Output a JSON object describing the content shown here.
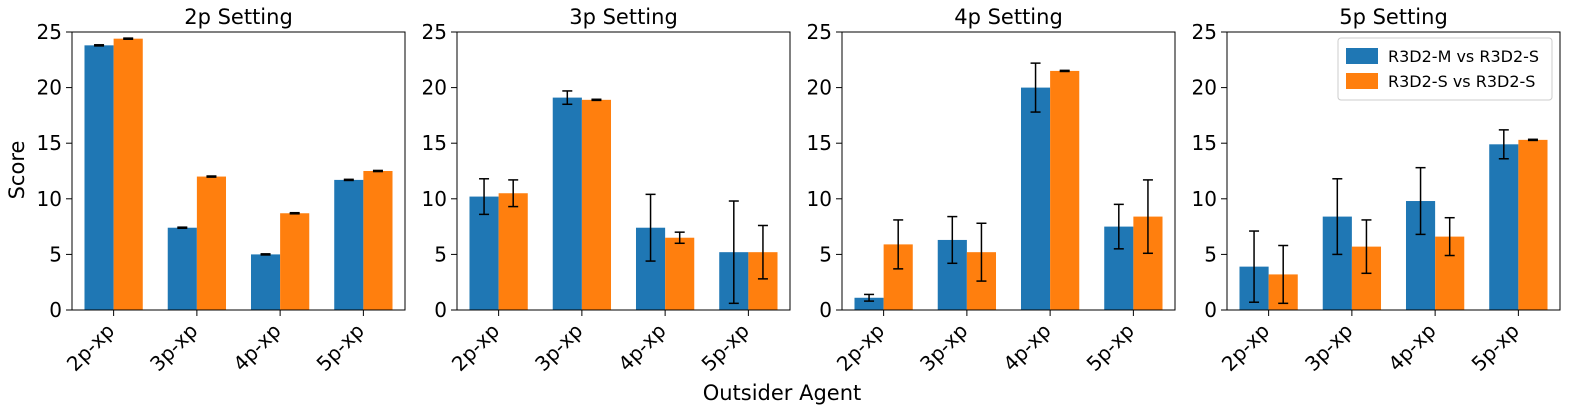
{
  "chart_data": {
    "type": "bar",
    "xlabel": "Outsider Agent",
    "ylabel": "Score",
    "ylim": [
      0,
      25
    ],
    "yticks": [
      0,
      5,
      10,
      15,
      20,
      25
    ],
    "categories": [
      "2p-xp",
      "3p-xp",
      "4p-xp",
      "5p-xp"
    ],
    "legend": {
      "location": "top-right",
      "entries": [
        "R3D2-M vs R3D2-S",
        "R3D2-S vs R3D2-S"
      ]
    },
    "colors": [
      "#1f77b4",
      "#ff7f0e"
    ],
    "panels": [
      {
        "title": "2p Setting",
        "series": [
          {
            "name": "R3D2-M vs R3D2-S",
            "values": [
              23.8,
              7.4,
              5.0,
              11.7
            ],
            "errors": [
              0.05,
              0.05,
              0.05,
              0.05
            ]
          },
          {
            "name": "R3D2-S vs R3D2-S",
            "values": [
              24.4,
              12.0,
              8.7,
              12.5
            ],
            "errors": [
              0.05,
              0.05,
              0.05,
              0.05
            ]
          }
        ]
      },
      {
        "title": "3p Setting",
        "series": [
          {
            "name": "R3D2-M vs R3D2-S",
            "values": [
              10.2,
              19.1,
              7.4,
              5.2
            ],
            "errors": [
              1.6,
              0.6,
              3.0,
              4.6
            ]
          },
          {
            "name": "R3D2-S vs R3D2-S",
            "values": [
              10.5,
              18.9,
              6.5,
              5.2
            ],
            "errors": [
              1.2,
              0.05,
              0.5,
              2.4
            ]
          }
        ]
      },
      {
        "title": "4p Setting",
        "series": [
          {
            "name": "R3D2-M vs R3D2-S",
            "values": [
              1.1,
              6.3,
              20.0,
              7.5
            ],
            "errors": [
              0.3,
              2.1,
              2.2,
              2.0
            ]
          },
          {
            "name": "R3D2-S vs R3D2-S",
            "values": [
              5.9,
              5.2,
              21.5,
              8.4
            ],
            "errors": [
              2.2,
              2.6,
              0.05,
              3.3
            ]
          }
        ]
      },
      {
        "title": "5p Setting",
        "series": [
          {
            "name": "R3D2-M vs R3D2-S",
            "values": [
              3.9,
              8.4,
              9.8,
              14.9
            ],
            "errors": [
              3.2,
              3.4,
              3.0,
              1.3
            ]
          },
          {
            "name": "R3D2-S vs R3D2-S",
            "values": [
              3.2,
              5.7,
              6.6,
              15.3
            ],
            "errors": [
              2.6,
              2.4,
              1.7,
              0.05
            ]
          }
        ]
      }
    ]
  }
}
